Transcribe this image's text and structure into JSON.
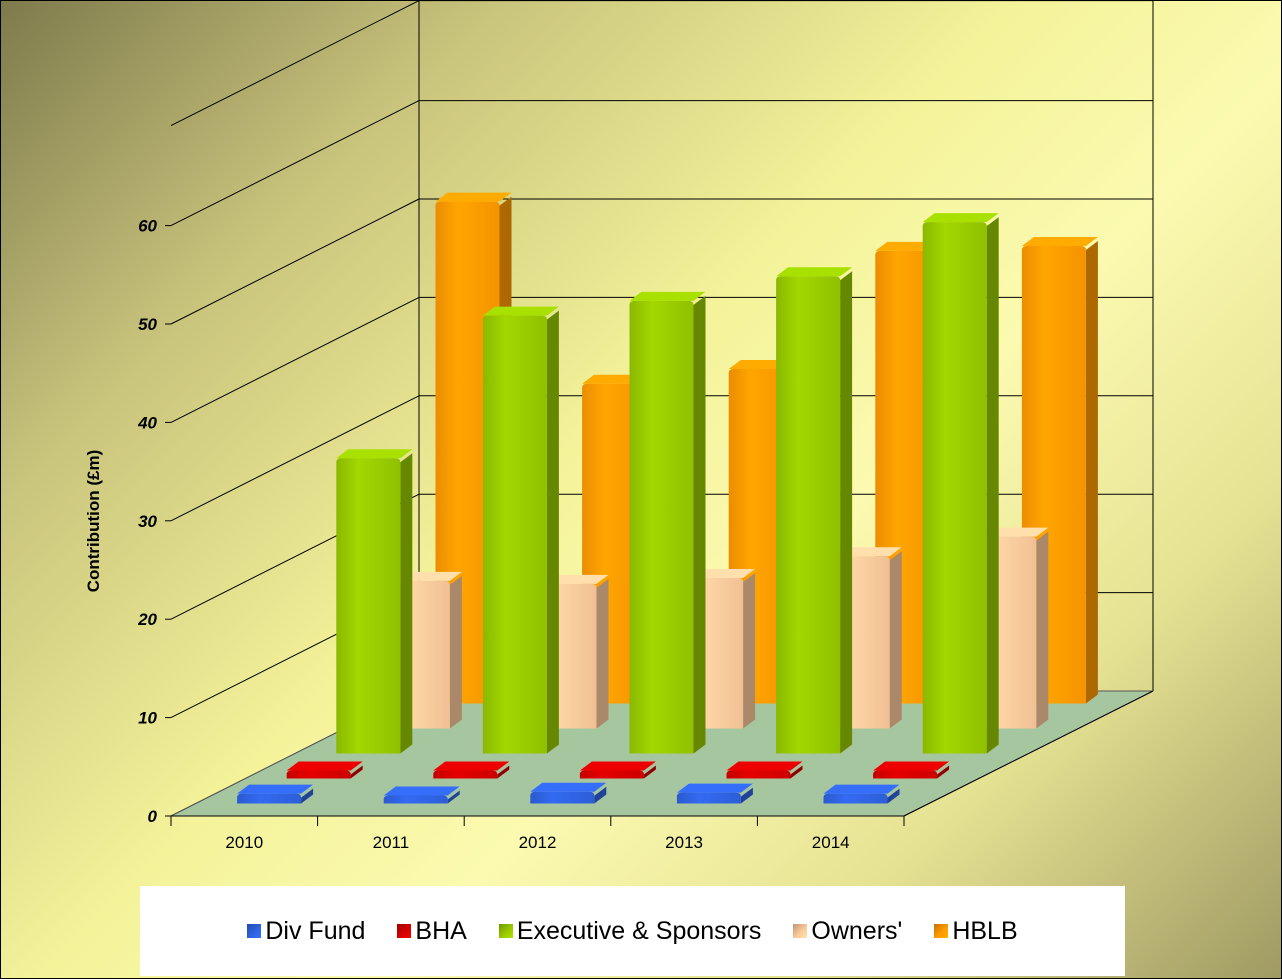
{
  "chart_data": {
    "type": "bar",
    "subtype": "3d-clustered-column",
    "categories": [
      "2010",
      "2011",
      "2012",
      "2013",
      "2014"
    ],
    "ylabel": "Contribution (£m)",
    "yticks": [
      "0",
      "10",
      "20",
      "30",
      "40",
      "50",
      "60"
    ],
    "ylim": [
      0,
      60
    ],
    "grid": true,
    "legend_position": "bottom",
    "series": [
      {
        "name": "Div Fund",
        "values": [
          1,
          0.7,
          1.2,
          1.1,
          1
        ],
        "color": "#2f62e0"
      },
      {
        "name": "BHA",
        "values": [
          0.8,
          0.4,
          0.5,
          0.5,
          0.6
        ],
        "color": "#d40000"
      },
      {
        "name": "Executive & Sponsors",
        "values": [
          30,
          44.5,
          46,
          48.5,
          54
        ],
        "color": "#96c800"
      },
      {
        "name": "Owners'",
        "values": [
          15,
          14.7,
          15.3,
          17.5,
          19.5
        ],
        "color": "#fac89a"
      },
      {
        "name": "HBLB",
        "values": [
          51,
          32.5,
          34,
          46,
          46.5
        ],
        "color": "#ff9900"
      }
    ]
  }
}
